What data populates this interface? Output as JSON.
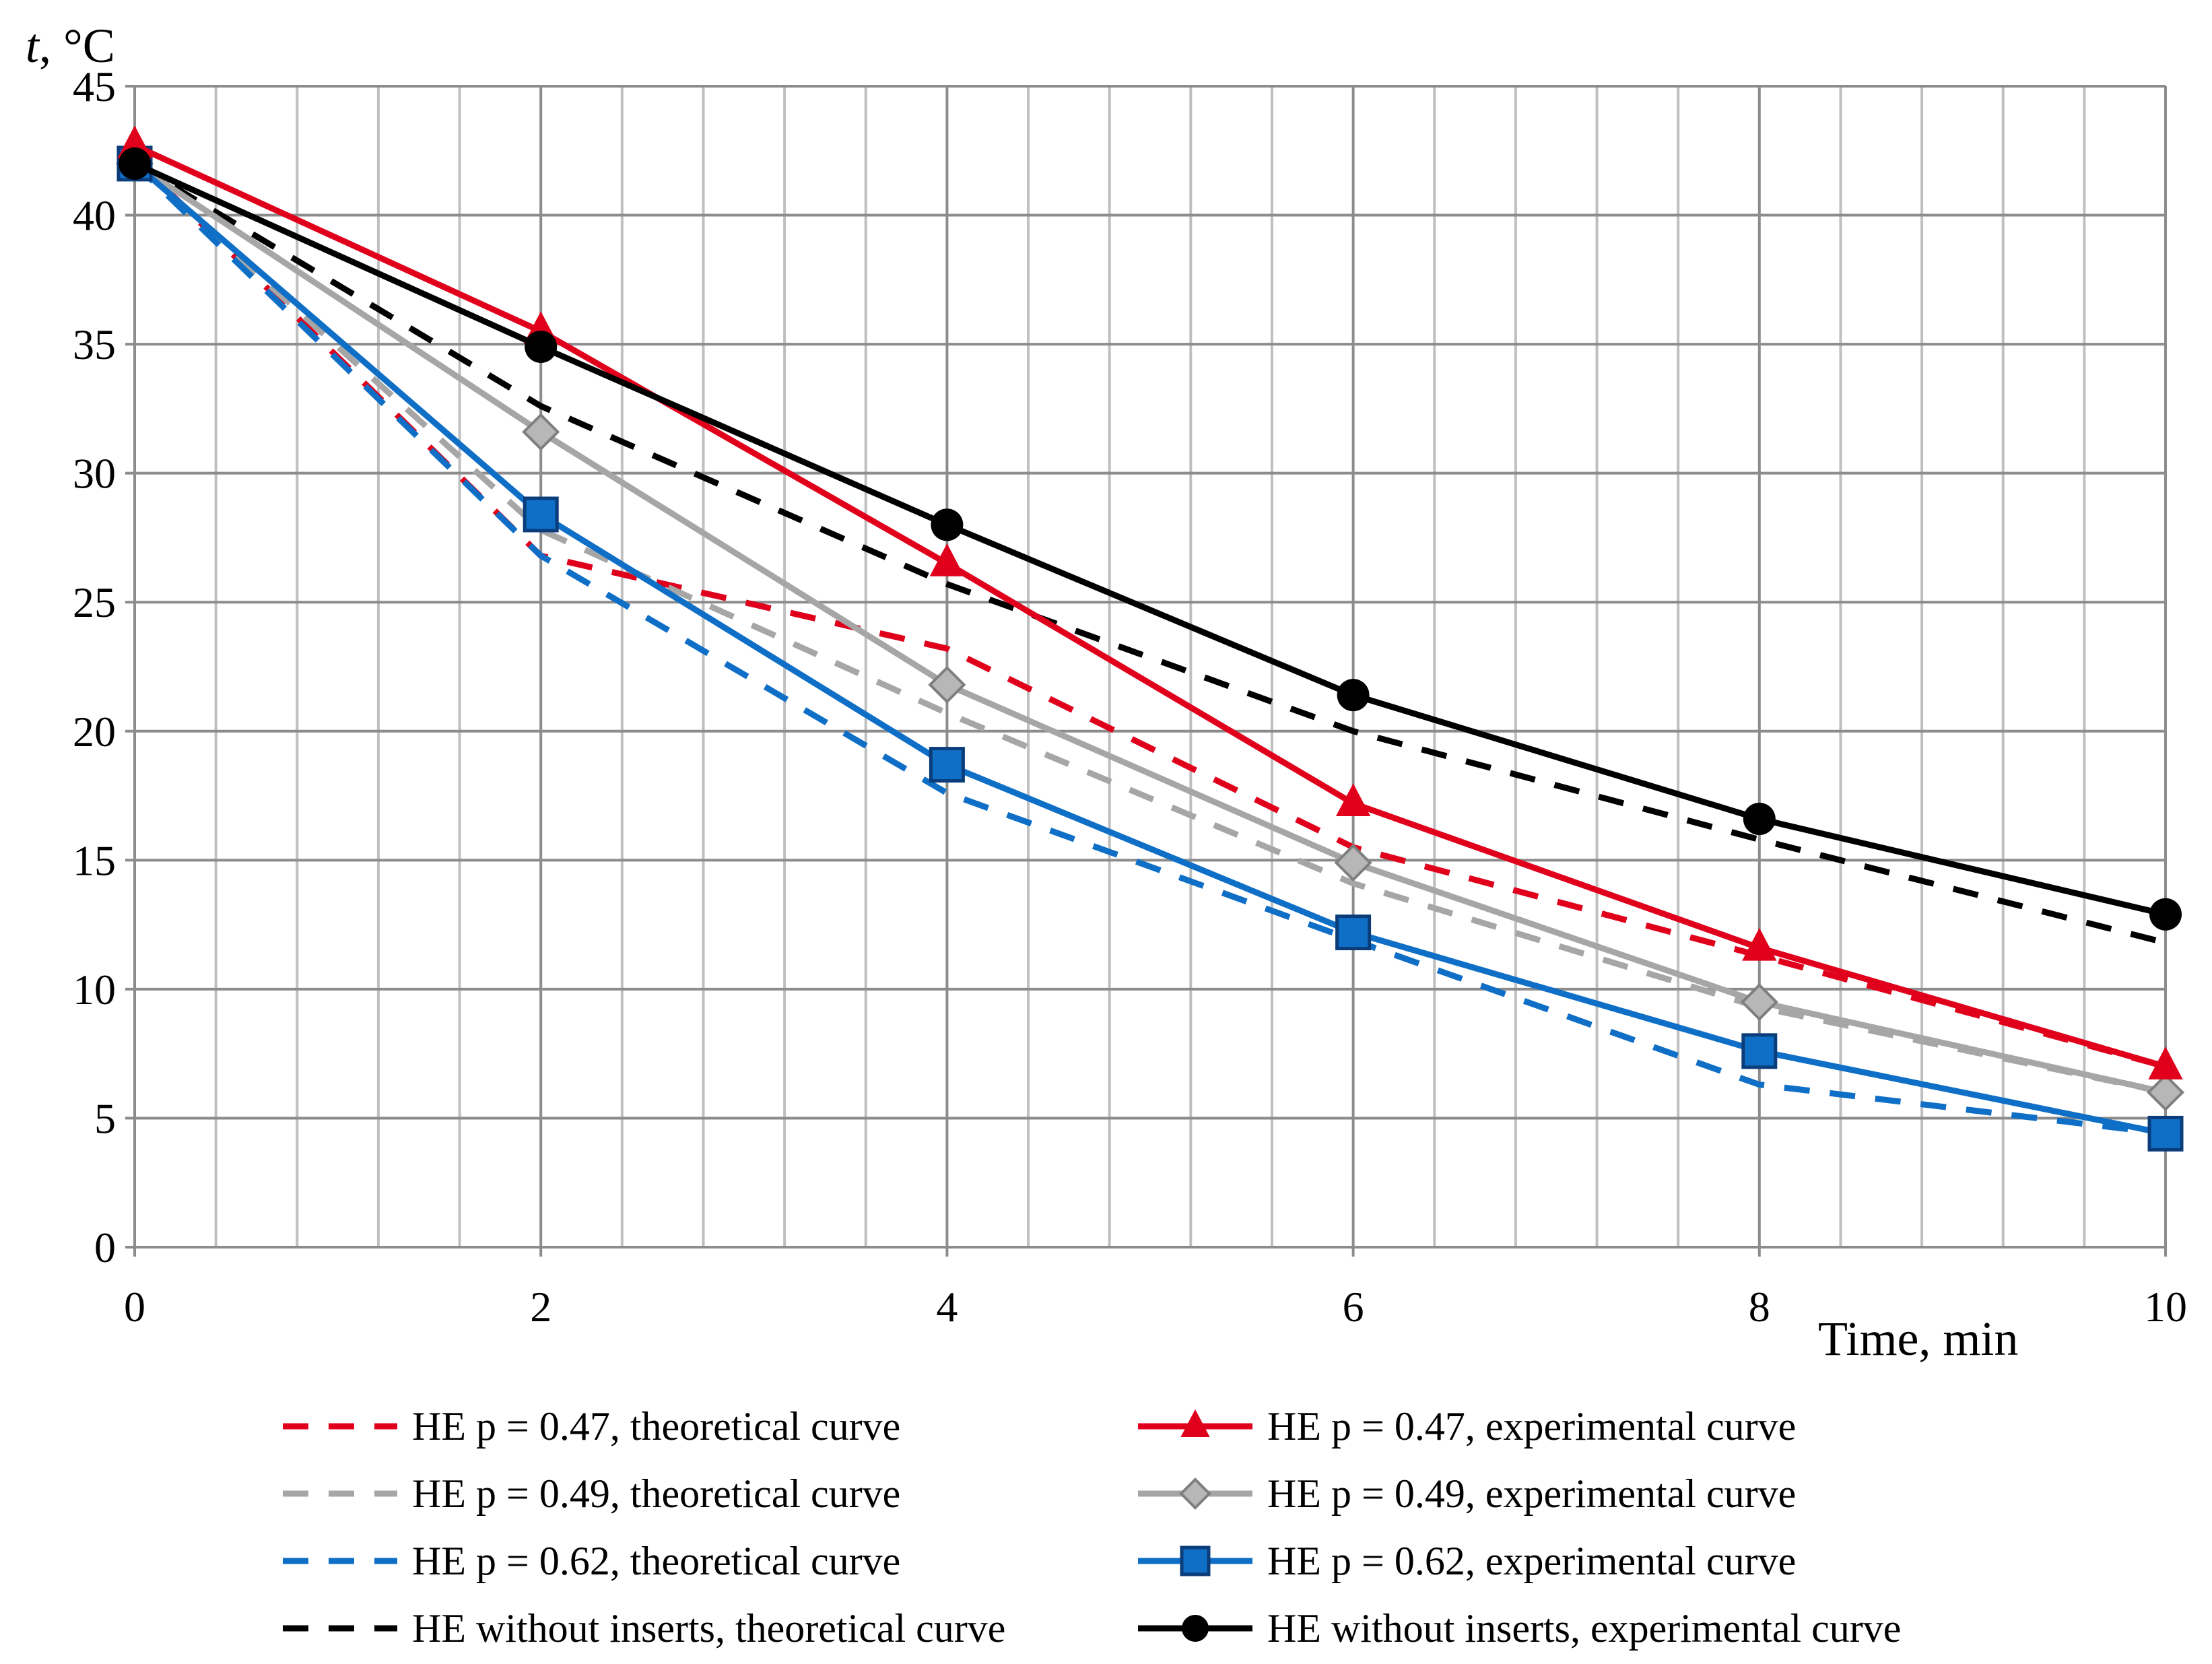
{
  "chart_data": {
    "type": "line",
    "title": "",
    "xlabel": "Time, min",
    "ylabel_italic": "t",
    "ylabel_unit": ", °C",
    "x": [
      0,
      2,
      4,
      6,
      8,
      10
    ],
    "xlim": [
      0,
      10
    ],
    "ylim": [
      0,
      45
    ],
    "xticks": [
      0,
      2,
      4,
      6,
      8,
      10
    ],
    "yticks": [
      0,
      5,
      10,
      15,
      20,
      25,
      30,
      35,
      40,
      45
    ],
    "grid": true,
    "legend_position": "bottom",
    "series": [
      {
        "name": "HE p = 0.47, theoretical curve",
        "color": "#e0001b",
        "style": "dashed",
        "marker": "none",
        "values": [
          42.2,
          26.8,
          23.2,
          15.5,
          11.3,
          7.0
        ]
      },
      {
        "name": "HE p = 0.47, experimental curve",
        "color": "#e0001b",
        "style": "solid",
        "marker": "triangle",
        "values": [
          42.7,
          35.5,
          26.5,
          17.2,
          11.6,
          7.0
        ]
      },
      {
        "name": "HE p = 0.49, theoretical curve",
        "color": "#a6a6a6",
        "style": "dashed",
        "marker": "none",
        "values": [
          42.0,
          27.8,
          20.7,
          14.1,
          9.3,
          6.0
        ]
      },
      {
        "name": "HE p = 0.49, experimental curve",
        "color": "#a6a6a6",
        "style": "solid",
        "marker": "diamond",
        "values": [
          42.0,
          31.6,
          21.8,
          14.9,
          9.5,
          6.0
        ]
      },
      {
        "name": "HE p = 0.62, theoretical curve",
        "color": "#0f6fc6",
        "style": "dashed",
        "marker": "none",
        "values": [
          42.0,
          26.8,
          17.6,
          11.9,
          6.3,
          4.4
        ]
      },
      {
        "name": "HE p = 0.62, experimental curve",
        "color": "#0f6fc6",
        "style": "solid",
        "marker": "square",
        "values": [
          42.0,
          28.4,
          18.7,
          12.2,
          7.6,
          4.4
        ]
      },
      {
        "name": "HE without inserts, theoretical curve",
        "color": "#000000",
        "style": "dashed",
        "marker": "none",
        "values": [
          42.0,
          32.6,
          25.7,
          20.0,
          15.8,
          11.8
        ]
      },
      {
        "name": "HE without inserts, experimental curve",
        "color": "#000000",
        "style": "solid",
        "marker": "circle",
        "values": [
          42.0,
          34.9,
          28.0,
          21.4,
          16.6,
          12.9
        ]
      }
    ]
  }
}
